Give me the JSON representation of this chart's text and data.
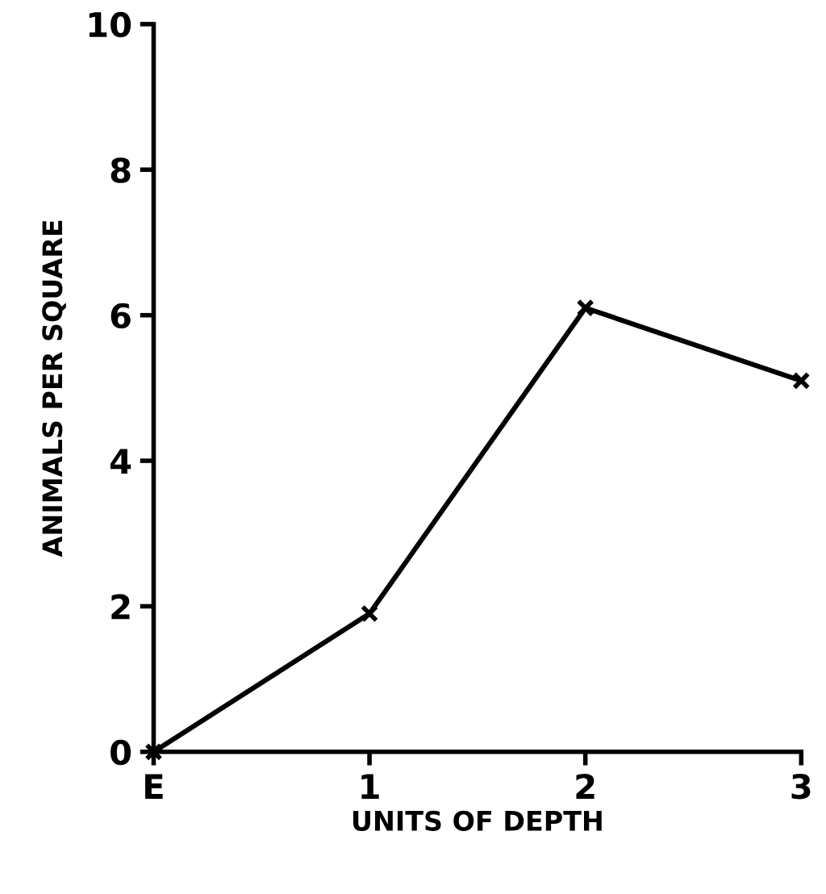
{
  "chart_data": {
    "type": "line",
    "xlabel": "UNITS OF DEPTH",
    "ylabel": "ANIMALS PER SQUARE",
    "x": [
      0,
      1,
      2,
      3
    ],
    "series": [
      {
        "color": "#000000",
        "values": [
          0,
          1.9,
          6.1,
          5.1
        ]
      }
    ],
    "xlim": [
      0,
      3
    ],
    "xticks": [
      {
        "value": 0,
        "label": "E"
      },
      1,
      2,
      3
    ],
    "ylim": [
      0,
      10
    ],
    "yticks": [
      0,
      2,
      4,
      6,
      8,
      10
    ],
    "grid": false,
    "marker": "cross",
    "line_style": "solid"
  }
}
